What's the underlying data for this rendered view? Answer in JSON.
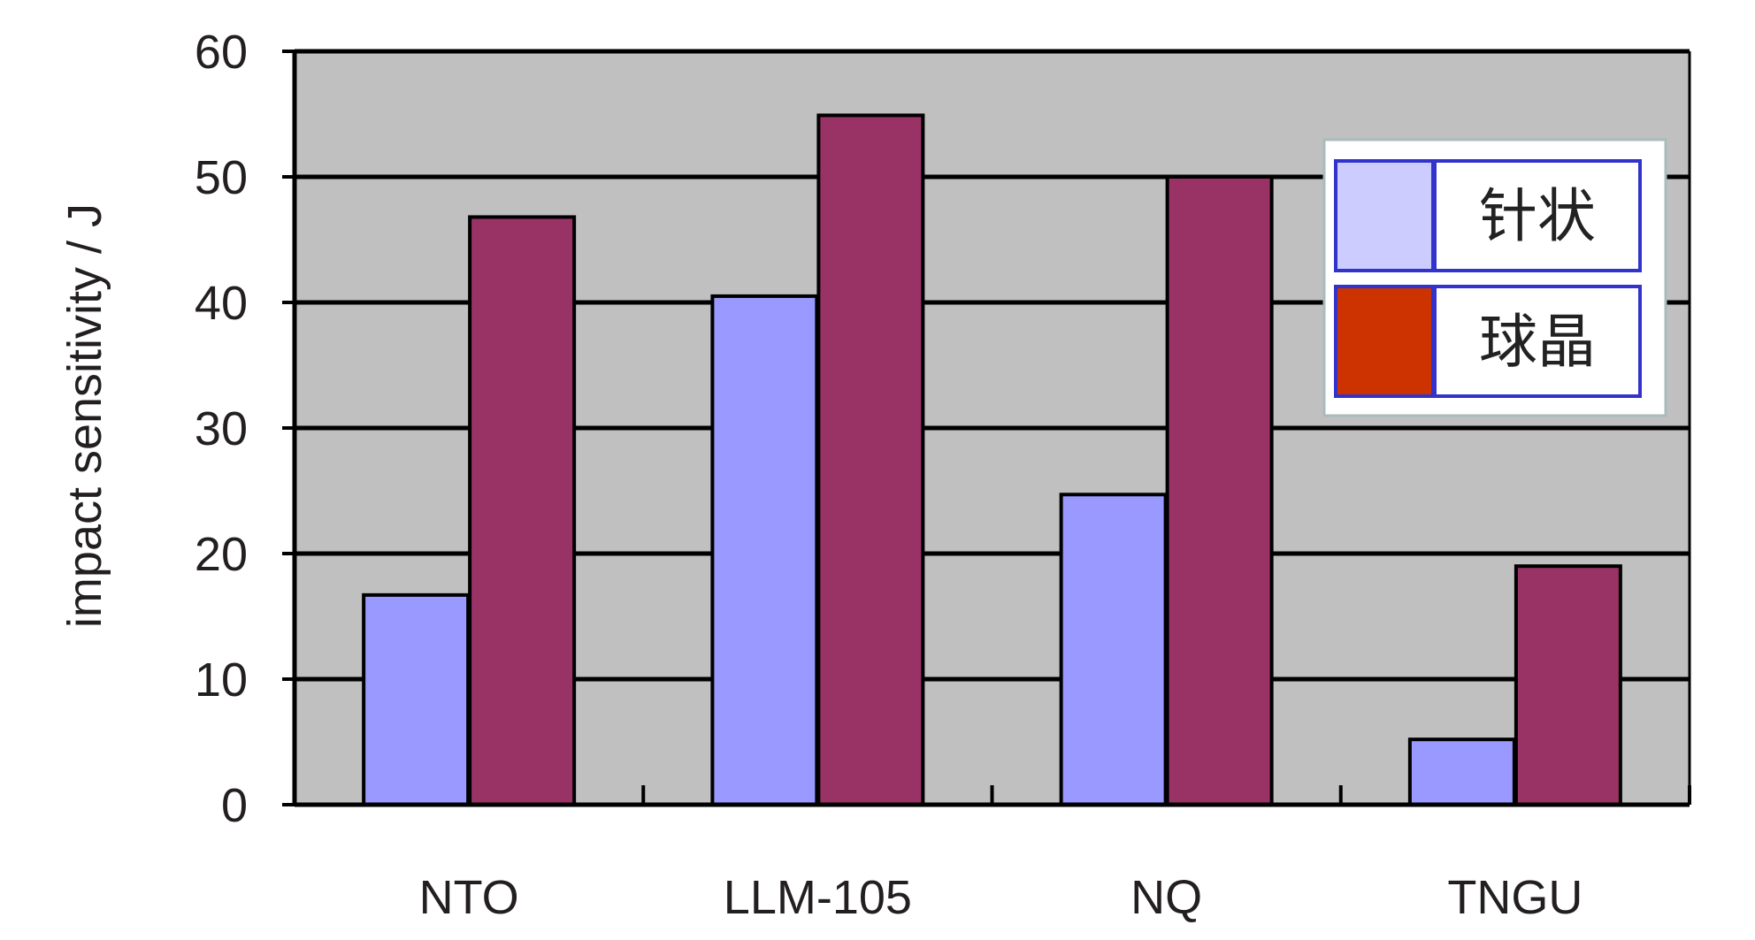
{
  "chart_data": {
    "type": "bar",
    "title": "",
    "xlabel": "",
    "ylabel": "impact sensitivity / J",
    "categories": [
      "NTO",
      "LLM-105",
      "NQ",
      "TNGU"
    ],
    "ylim": [
      0,
      60
    ],
    "yticks": [
      0,
      10,
      20,
      30,
      40,
      50,
      60
    ],
    "grid": true,
    "legend_position": "top-right",
    "series": [
      {
        "name": "针状",
        "values": [
          16.7,
          40.5,
          24.7,
          5.2
        ],
        "color": "#9999ff",
        "legend_color": "#ccccff"
      },
      {
        "name": "球晶",
        "values": [
          46.8,
          54.9,
          50,
          19
        ],
        "color": "#993366",
        "legend_color": "#cc3300"
      }
    ],
    "plot_background": "#c0c0c0"
  }
}
